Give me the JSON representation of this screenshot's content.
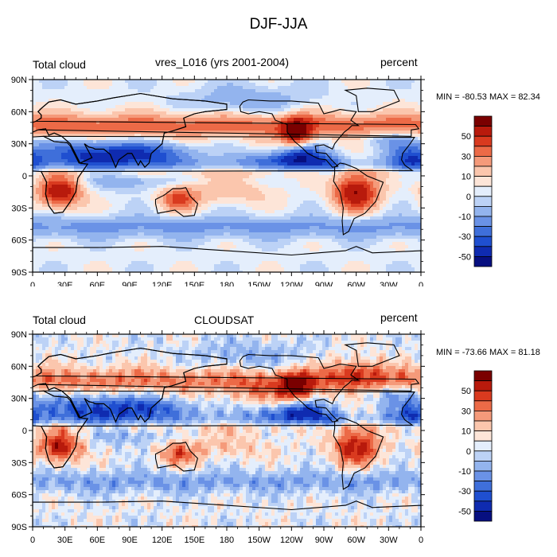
{
  "figure_title": "DJF-JJA",
  "panels": [
    {
      "left_label": "Total cloud",
      "center_label": "vres_L016 (yrs 2001-2004)",
      "right_label": "percent",
      "min_max": "MIN = -80.53 MAX =  82.34"
    },
    {
      "left_label": "Total cloud",
      "center_label": "CLOUDSAT",
      "right_label": "percent",
      "min_max": "MIN = -73.66 MAX =  81.18"
    }
  ],
  "lat_ticks": [
    "90N",
    "60N",
    "30N",
    "0",
    "30S",
    "60S",
    "90S"
  ],
  "lon_ticks": [
    "0",
    "30E",
    "60E",
    "90E",
    "120E",
    "150E",
    "180",
    "150W",
    "120W",
    "90W",
    "60W",
    "30W",
    "0"
  ],
  "colorbar": {
    "labels": [
      "50",
      "30",
      "10",
      "0",
      "-10",
      "-30",
      "-50"
    ],
    "colors": [
      "#7a0000",
      "#b81a0c",
      "#d93a1f",
      "#ec6a47",
      "#f59a7a",
      "#fbc6ad",
      "#fde5d8",
      "#e4eefc",
      "#bcd2f6",
      "#93b4ee",
      "#6a92e6",
      "#3f6fda",
      "#1f4fd0",
      "#0f2bb0",
      "#070f80"
    ]
  }
}
